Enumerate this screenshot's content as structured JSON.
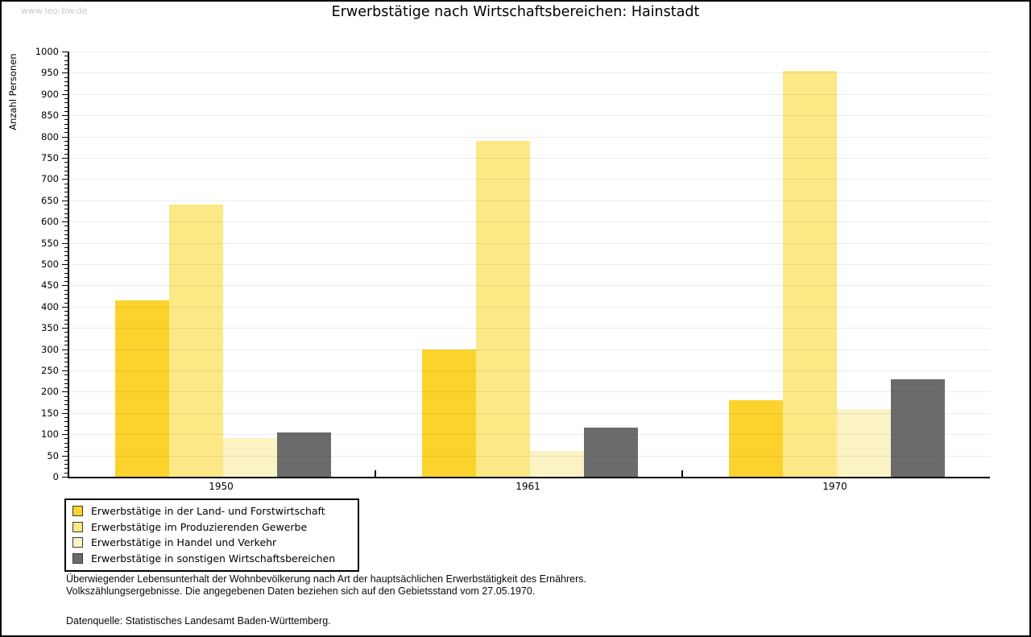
{
  "watermark": "www.leo-bw.de",
  "header": {
    "title": "Erwerbstätige nach Wirtschaftsbereichen: Hainstadt"
  },
  "chart_data": {
    "type": "bar",
    "title": "Erwerbstätige nach Wirtschaftsbereichen: Hainstadt",
    "xlabel": "",
    "ylabel": "Anzahl Personen",
    "ylim": [
      0,
      1000
    ],
    "ytick_step": 50,
    "minor_tick_step": 10,
    "grid": "horizontal every 50",
    "legend_position": "bottom-left",
    "categories": [
      "1950",
      "1961",
      "1970"
    ],
    "series": [
      {
        "name": "Erwerbstätige in der Land- und Forstwirtschaft",
        "color": "#FCD32D",
        "values": [
          415,
          300,
          180
        ]
      },
      {
        "name": "Erwerbstätige im Produzierenden Gewerbe",
        "color": "#FCE885",
        "values": [
          640,
          790,
          955
        ]
      },
      {
        "name": "Erwerbstätige in Handel und Verkehr",
        "color": "#FBF3C4",
        "values": [
          90,
          60,
          160
        ]
      },
      {
        "name": "Erwerbstätige in sonstigen Wirtschaftsbereichen",
        "color": "#6B6B6B",
        "values": [
          105,
          115,
          230
        ]
      }
    ]
  },
  "footnotes": {
    "line1": "Überwiegender Lebensunterhalt der Wohnbevölkerung nach Art der hauptsächlichen Erwerbstätigkeit des Ernährers.",
    "line2": "Volkszählungsergebnisse. Die angegebenen Daten beziehen sich auf den Gebietsstand vom 27.05.1970.",
    "source": "Datenquelle: Statistisches Landesamt Baden-Württemberg."
  }
}
